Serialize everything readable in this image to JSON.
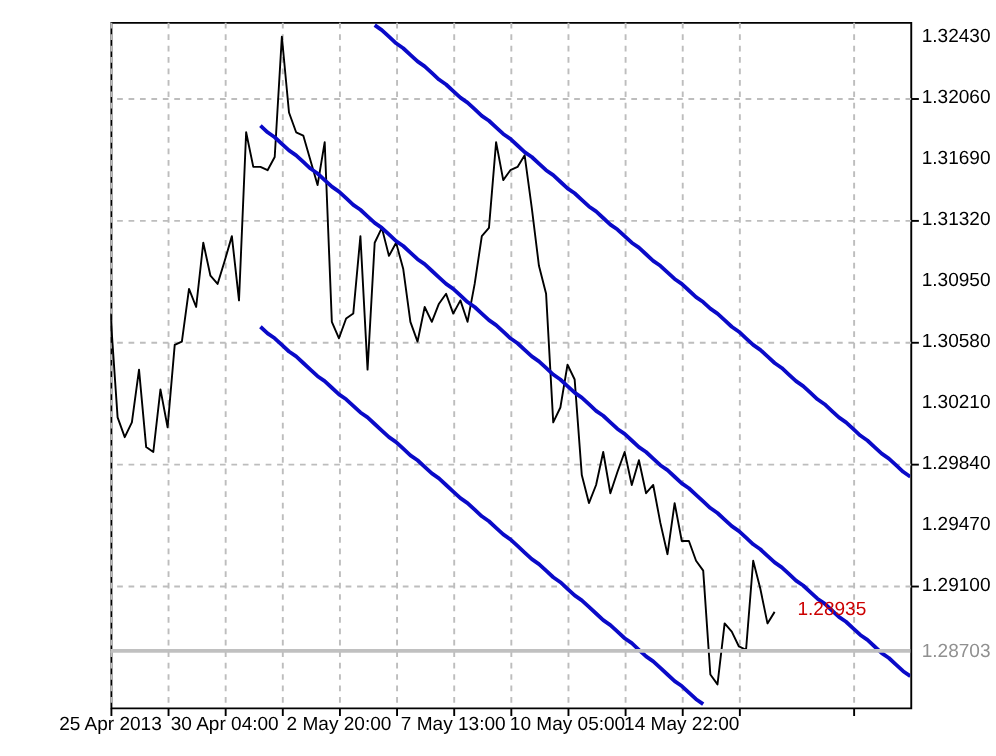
{
  "chart_data": {
    "type": "line",
    "categories": [
      "25 Apr 2013",
      null,
      null,
      null,
      null,
      null,
      null,
      null,
      null,
      null,
      null,
      null,
      null,
      null,
      null,
      null,
      "30 Apr 04:00",
      null,
      null,
      null,
      null,
      null,
      null,
      null,
      null,
      null,
      null,
      null,
      null,
      null,
      null,
      null,
      "2 May 20:00",
      null,
      null,
      null,
      null,
      null,
      null,
      null,
      null,
      null,
      null,
      null,
      null,
      null,
      null,
      null,
      "7 May 13:00",
      null,
      null,
      null,
      null,
      null,
      null,
      null,
      null,
      null,
      null,
      null,
      null,
      null,
      null,
      null,
      "10 May 05:00",
      null,
      null,
      null,
      null,
      null,
      null,
      null,
      null,
      null,
      null,
      null,
      null,
      null,
      null,
      null,
      "14 May 22:00",
      null,
      null,
      null,
      null,
      null,
      null,
      null,
      null,
      null,
      null,
      null,
      null,
      null,
      null,
      null,
      null,
      null,
      null,
      null,
      null,
      null,
      null,
      null,
      null,
      null,
      null,
      null,
      null,
      null,
      null,
      null,
      null
    ],
    "ylim": [
      1.2836,
      1.3252
    ],
    "yticks": [
      {
        "value": 1.3243,
        "label": "1.32430"
      },
      {
        "value": 1.3206,
        "label": "1.32060"
      },
      {
        "value": 1.3169,
        "label": "1.31690"
      },
      {
        "value": 1.3132,
        "label": "1.31320"
      },
      {
        "value": 1.3095,
        "label": "1.30950"
      },
      {
        "value": 1.3058,
        "label": "1.30580"
      },
      {
        "value": 1.3021,
        "label": "1.30210"
      },
      {
        "value": 1.2984,
        "label": "1.29840"
      },
      {
        "value": 1.2947,
        "label": "1.29470"
      },
      {
        "value": 1.291,
        "label": "1.29100"
      }
    ],
    "grid": true,
    "series": [
      {
        "color": "#000000",
        "values": [
          1.3075,
          1.3012,
          1.3,
          1.3009,
          1.3041,
          1.2994,
          1.2991,
          1.3029,
          1.3006,
          1.3056,
          1.3058,
          1.309,
          1.3079,
          1.3118,
          1.3098,
          1.3093,
          1.3107,
          1.3122,
          1.3083,
          1.3185,
          1.3164,
          1.3164,
          1.3162,
          1.317,
          1.3243,
          1.3197,
          1.3185,
          1.3183,
          1.3168,
          1.3153,
          1.3179,
          1.307,
          1.306,
          1.3072,
          1.3075,
          1.3122,
          1.3041,
          1.3118,
          1.3127,
          1.311,
          1.3118,
          1.3102,
          1.307,
          1.3058,
          1.3079,
          1.307,
          1.3081,
          1.3087,
          1.3075,
          1.3083,
          1.307,
          1.3093,
          1.3122,
          1.3127,
          1.3179,
          1.3156,
          1.3162,
          1.3164,
          1.3171,
          1.3139,
          1.3104,
          1.3087,
          1.3009,
          1.3018,
          1.3044,
          1.3035,
          1.2977,
          1.296,
          1.2971,
          1.2991,
          1.2966,
          1.2979,
          1.2991,
          1.2971,
          1.2986,
          1.2966,
          1.2971,
          1.2948,
          1.2929,
          1.296,
          1.2937,
          1.2937,
          1.2925,
          1.2919,
          1.2856,
          1.285,
          1.2887,
          1.2882,
          1.2873,
          1.2871,
          1.2925,
          1.2908,
          1.2887,
          1.2894,
          null,
          null,
          null,
          null,
          null,
          null,
          null,
          null,
          null,
          null,
          null,
          null,
          null,
          null,
          null,
          null,
          null,
          null,
          null
        ]
      },
      {
        "type": "line",
        "color": "#0a0ac8",
        "values": [
          null,
          null,
          null,
          null,
          null,
          null,
          null,
          null,
          null,
          null,
          null,
          null,
          null,
          null,
          null,
          null,
          null,
          null,
          null,
          null,
          null,
          null,
          null,
          null,
          null,
          null,
          null,
          null,
          null,
          null,
          null,
          null,
          null,
          null,
          null,
          null,
          null,
          1.325,
          1.3247,
          1.3243,
          1.3239,
          1.3236,
          1.3232,
          1.3228,
          1.3225,
          1.3221,
          1.3217,
          1.3214,
          1.321,
          1.3206,
          1.3203,
          1.3199,
          1.3195,
          1.3192,
          1.3188,
          1.3184,
          1.3181,
          1.3177,
          1.3173,
          1.317,
          1.3166,
          1.3162,
          1.3159,
          1.3155,
          1.3151,
          1.3148,
          1.3144,
          1.314,
          1.3137,
          1.3133,
          1.3129,
          1.3126,
          1.3122,
          1.3118,
          1.3115,
          1.3111,
          1.3107,
          1.3104,
          1.31,
          1.3096,
          1.3093,
          1.3089,
          1.3085,
          1.3082,
          1.3078,
          1.3075,
          1.3071,
          1.3067,
          1.3064,
          1.306,
          1.3056,
          1.3053,
          1.3049,
          1.3045,
          1.3042,
          1.3038,
          1.3034,
          1.3031,
          1.3027,
          1.3023,
          1.302,
          1.3016,
          1.3012,
          1.3009,
          1.3005,
          1.3001,
          1.2998,
          1.2994,
          1.299,
          1.2987,
          1.2983,
          1.2979,
          1.2976
        ]
      },
      {
        "type": "line",
        "color": "#0a0ac8",
        "values": [
          null,
          null,
          null,
          null,
          null,
          null,
          null,
          null,
          null,
          null,
          null,
          null,
          null,
          null,
          null,
          null,
          null,
          null,
          null,
          null,
          null,
          1.3189,
          1.3185,
          1.3182,
          1.3178,
          1.3174,
          1.3171,
          1.3167,
          1.3163,
          1.316,
          1.3156,
          1.3152,
          1.3149,
          1.3145,
          1.3141,
          1.3138,
          1.3134,
          1.313,
          1.3127,
          1.3123,
          1.3119,
          1.3116,
          1.3112,
          1.3108,
          1.3105,
          1.3101,
          1.3097,
          1.3093,
          1.309,
          1.3086,
          1.3082,
          1.3079,
          1.3075,
          1.3071,
          1.3068,
          1.3064,
          1.306,
          1.3057,
          1.3053,
          1.3049,
          1.3046,
          1.3042,
          1.3038,
          1.3035,
          1.3031,
          1.3027,
          1.3024,
          1.302,
          1.3016,
          1.3013,
          1.3009,
          1.3005,
          1.3002,
          1.2998,
          1.2994,
          1.2991,
          1.2987,
          1.2983,
          1.298,
          1.2976,
          1.2972,
          1.2969,
          1.2965,
          1.2961,
          1.2957,
          1.2954,
          1.295,
          1.2946,
          1.2943,
          1.2939,
          1.2935,
          1.2932,
          1.2928,
          1.2924,
          1.2921,
          1.2917,
          1.2913,
          1.291,
          1.2906,
          1.2902,
          1.2899,
          1.2895,
          1.2891,
          1.2888,
          1.2884,
          1.288,
          1.2877,
          1.2873,
          1.2869,
          1.2866,
          1.2862,
          1.2858,
          1.2855
        ]
      },
      {
        "type": "line",
        "color": "#0a0ac8",
        "values": [
          null,
          null,
          null,
          null,
          null,
          null,
          null,
          null,
          null,
          null,
          null,
          null,
          null,
          null,
          null,
          null,
          null,
          null,
          null,
          null,
          null,
          1.3067,
          1.3063,
          1.306,
          1.3056,
          1.3052,
          1.3049,
          1.3045,
          1.3041,
          1.3037,
          1.3034,
          1.303,
          1.3026,
          1.3023,
          1.3019,
          1.3015,
          1.3012,
          1.3008,
          1.3004,
          1.3,
          1.2997,
          1.2993,
          1.2989,
          1.2986,
          1.2982,
          1.2978,
          1.2975,
          1.2971,
          1.2967,
          1.2963,
          1.296,
          1.2956,
          1.2952,
          1.2949,
          1.2945,
          1.2941,
          1.2938,
          1.2934,
          1.293,
          1.2926,
          1.2923,
          1.2919,
          1.2915,
          1.2912,
          1.2908,
          1.2904,
          1.2901,
          1.2897,
          1.2893,
          1.2889,
          1.2886,
          1.2882,
          1.2878,
          1.2875,
          1.2871,
          1.2867,
          1.2864,
          1.286,
          1.2856,
          1.2852,
          1.2849,
          1.2845,
          1.2841,
          1.2838,
          null,
          null,
          null,
          null,
          null,
          null,
          null,
          null,
          null,
          null,
          null,
          null,
          null,
          null,
          null,
          null,
          null,
          null,
          null,
          null,
          null,
          null,
          null,
          null,
          null,
          null,
          null,
          null,
          null
        ]
      }
    ],
    "ref_lines": [
      {
        "axis": "y",
        "value": 1.28703,
        "label": "1.28703",
        "color": "#c0c0c0"
      }
    ],
    "annotations": [
      {
        "text": "1.28935",
        "y": 1.28935
      }
    ]
  }
}
